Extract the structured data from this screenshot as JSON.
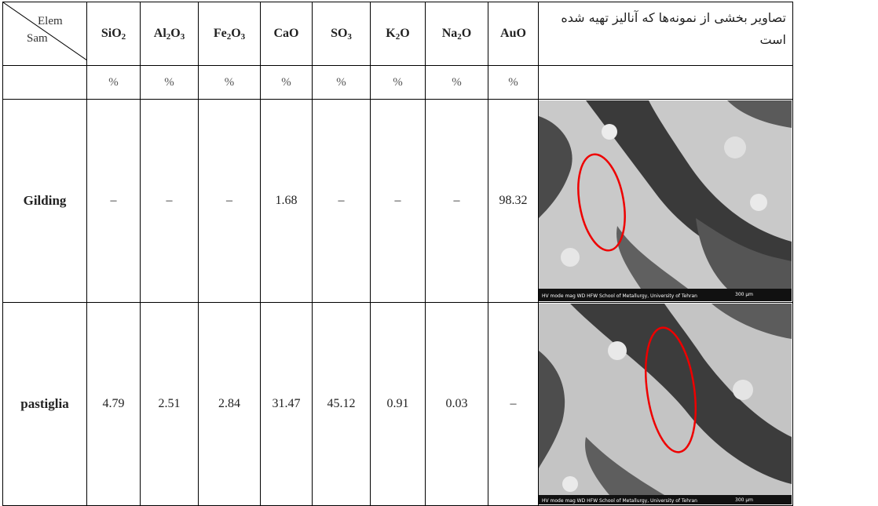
{
  "corner": {
    "top": "Elem",
    "bottom": "Sam"
  },
  "elements": [
    {
      "base": "SiO",
      "sub": "2"
    },
    {
      "base": "Al",
      "sub": "2",
      "mid": "O",
      "sub2": "3"
    },
    {
      "base": "Fe",
      "sub": "2",
      "mid": "O",
      "sub2": "3"
    },
    {
      "base": "CaO"
    },
    {
      "base": "SO",
      "sub": "3"
    },
    {
      "base": "K",
      "sub": "2",
      "mid": "O"
    },
    {
      "base": "Na",
      "sub": "2",
      "mid": "O"
    },
    {
      "base": "AuO"
    }
  ],
  "image_header": "تصاویر بخشی از نمونه‌ها که آنالیز تهیه شده است",
  "unit": "%",
  "rows": [
    {
      "label": "Gilding",
      "values": [
        "–",
        "–",
        "–",
        "1.68",
        "–",
        "–",
        "–",
        "98.32"
      ],
      "image": {
        "name": "sem-image-gilding",
        "caption": "HV  mode  mag  WD  HFW   School of Metallurgy, University of Tehran",
        "scale": "300 µm"
      }
    },
    {
      "label": "pastiglia",
      "values": [
        "4.79",
        "2.51",
        "2.84",
        "31.47",
        "45.12",
        "0.91",
        "0.03",
        "–"
      ],
      "image": {
        "name": "sem-image-pastiglia",
        "caption": "HV  mode  mag  WD  HFW   School of Metallurgy, University of Tehran",
        "scale": "300 µm"
      }
    }
  ]
}
